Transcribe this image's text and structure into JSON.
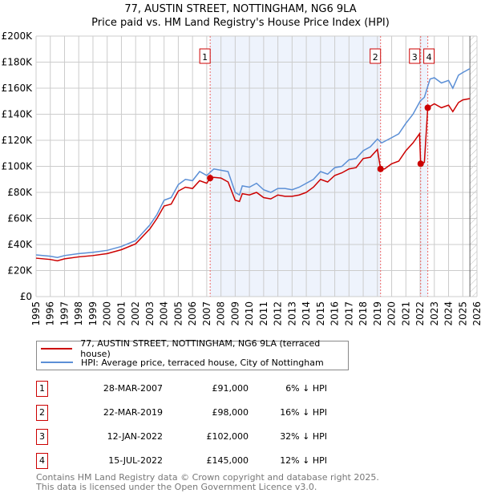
{
  "chart_data": {
    "type": "line",
    "title": "77, AUSTIN STREET, NOTTINGHAM, NG6 9LA",
    "subtitle": "Price paid vs. HM Land Registry's House Price Index (HPI)",
    "xlim": [
      1995,
      2026
    ],
    "ylim": [
      0,
      200000
    ],
    "yticks": [
      {
        "v": 0,
        "label": "£0"
      },
      {
        "v": 20000,
        "label": "£20K"
      },
      {
        "v": 40000,
        "label": "£40K"
      },
      {
        "v": 60000,
        "label": "£60K"
      },
      {
        "v": 80000,
        "label": "£80K"
      },
      {
        "v": 100000,
        "label": "£100K"
      },
      {
        "v": 120000,
        "label": "£120K"
      },
      {
        "v": 140000,
        "label": "£140K"
      },
      {
        "v": 160000,
        "label": "£160K"
      },
      {
        "v": 180000,
        "label": "£180K"
      },
      {
        "v": 200000,
        "label": "£200K"
      }
    ],
    "xticks": [
      "1995",
      "1996",
      "1997",
      "1998",
      "1999",
      "2000",
      "2001",
      "2002",
      "2003",
      "2004",
      "2005",
      "2006",
      "2007",
      "2008",
      "2009",
      "2010",
      "2011",
      "2012",
      "2013",
      "2014",
      "2015",
      "2016",
      "2017",
      "2018",
      "2019",
      "2020",
      "2021",
      "2022",
      "2023",
      "2024",
      "2025",
      "2026"
    ],
    "grid": true,
    "series": [
      {
        "name": "77, AUSTIN STREET, NOTTINGHAM, NG6 9LA (terraced house)",
        "color": "#cc0000",
        "x": [
          1995,
          1996,
          1996.5,
          1997,
          1998,
          1999,
          2000,
          2001,
          2002,
          2003,
          2003.5,
          2004,
          2004.5,
          2005,
          2005.5,
          2006,
          2006.5,
          2007,
          2007.24,
          2007.5,
          2008,
          2008.5,
          2009,
          2009.3,
          2009.5,
          2010,
          2010.5,
          2011,
          2011.5,
          2012,
          2012.5,
          2013,
          2013.5,
          2014,
          2014.5,
          2015,
          2015.5,
          2016,
          2016.5,
          2017,
          2017.5,
          2018,
          2018.5,
          2019,
          2019.22,
          2019.5,
          2020,
          2020.5,
          2021,
          2021.5,
          2021.96,
          2022.04,
          2022.3,
          2022.54,
          2023,
          2023.5,
          2024,
          2024.3,
          2024.7,
          2025,
          2025.5
        ],
        "y": [
          29500,
          28500,
          27500,
          29000,
          30500,
          31500,
          33000,
          36000,
          40500,
          52000,
          60000,
          69500,
          71000,
          81000,
          84000,
          83000,
          89000,
          87000,
          91000,
          91500,
          91000,
          88000,
          74000,
          73000,
          79000,
          78000,
          80000,
          76000,
          75000,
          78000,
          77000,
          77000,
          78000,
          80000,
          84000,
          90000,
          88000,
          93000,
          95000,
          98000,
          99000,
          106000,
          107000,
          113000,
          98000,
          98000,
          102000,
          104000,
          112000,
          118000,
          125000,
          102000,
          103000,
          145000,
          148000,
          145000,
          147000,
          142000,
          149000,
          151000,
          152000
        ]
      },
      {
        "name": "HPI: Average price, terraced house, City of Nottingham",
        "color": "#5b8fd6",
        "x": [
          1995,
          1996,
          1996.5,
          1997,
          1998,
          1999,
          2000,
          2001,
          2002,
          2003,
          2003.5,
          2004,
          2004.5,
          2005,
          2005.5,
          2006,
          2006.5,
          2007,
          2007.5,
          2008,
          2008.5,
          2009,
          2009.3,
          2009.5,
          2010,
          2010.5,
          2011,
          2011.5,
          2012,
          2012.5,
          2013,
          2013.5,
          2014,
          2014.5,
          2015,
          2015.5,
          2016,
          2016.5,
          2017,
          2017.5,
          2018,
          2018.5,
          2019,
          2019.3,
          2020,
          2020.5,
          2021,
          2021.5,
          2022,
          2022.3,
          2022.7,
          2023,
          2023.5,
          2024,
          2024.3,
          2024.7,
          2025,
          2025.5
        ],
        "y": [
          32000,
          31000,
          30000,
          31500,
          33000,
          34000,
          35500,
          38500,
          43000,
          55000,
          63000,
          74000,
          76000,
          86000,
          90000,
          89000,
          96000,
          93000,
          98000,
          97000,
          96000,
          80000,
          78000,
          85000,
          84000,
          87000,
          82000,
          80000,
          83000,
          83000,
          82000,
          84000,
          87000,
          90000,
          96000,
          94000,
          99000,
          100000,
          105000,
          106000,
          112000,
          115000,
          121000,
          118000,
          122000,
          125000,
          133000,
          140000,
          150000,
          153000,
          167000,
          168000,
          164000,
          166000,
          160000,
          170000,
          172000,
          175000
        ]
      }
    ],
    "shaded_ranges": [
      [
        2007.24,
        2019.22
      ],
      [
        2022.04,
        2022.54
      ]
    ],
    "hatched_from": 2025.5,
    "sales": [
      {
        "n": "1",
        "x": 2007.24,
        "y": 91000,
        "date": "28-MAR-2007",
        "price": "£91,000",
        "hpi": "6% ↓ HPI"
      },
      {
        "n": "2",
        "x": 2019.22,
        "y": 98000,
        "date": "22-MAR-2019",
        "price": "£98,000",
        "hpi": "16% ↓ HPI"
      },
      {
        "n": "3",
        "x": 2022.04,
        "y": 102000,
        "date": "12-JAN-2022",
        "price": "£102,000",
        "hpi": "32% ↓ HPI"
      },
      {
        "n": "4",
        "x": 2022.54,
        "y": 145000,
        "date": "15-JUL-2022",
        "price": "£145,000",
        "hpi": "12% ↓ HPI"
      }
    ],
    "legend_position": "below"
  },
  "footer": {
    "line1": "Contains HM Land Registry data © Crown copyright and database right 2025.",
    "line2": "This data is licensed under the Open Government Licence v3.0."
  }
}
